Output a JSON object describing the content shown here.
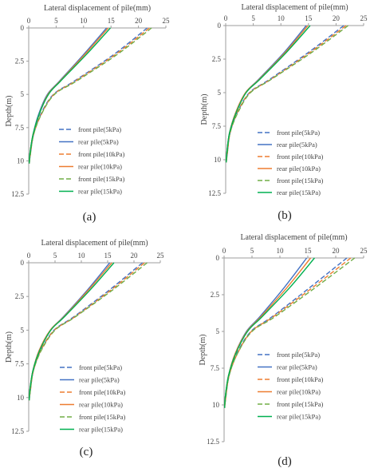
{
  "colors": {
    "front_5": "#4472C4",
    "rear_5": "#4472C4",
    "front_10": "#ED7D31",
    "rear_10": "#ED7D31",
    "front_15": "#70AD47",
    "rear_15": "#00B050",
    "axis": "#9e9e9e",
    "text": "#444444"
  },
  "chart_data": [
    {
      "type": "line",
      "panel_label": "(a)",
      "xlabel": "Lateral displacement of pile(mm)",
      "ylabel": "Depth(m)",
      "x_ticks": [
        "0",
        "5",
        "10",
        "15",
        "20",
        "25"
      ],
      "y_ticks": [
        "0",
        "2.5",
        "5",
        "7.5",
        "10",
        "12.5"
      ],
      "xlim": [
        0,
        25
      ],
      "ylim": [
        0,
        12.5
      ],
      "x_axis_position": "top",
      "y_reversed": true,
      "grid": false,
      "legend_position": "bottom-right",
      "series": [
        {
          "name": "front pile(5kPa)",
          "style": "dashed",
          "color_key": "front_5",
          "points": [
            [
              21.6,
              0
            ],
            [
              15.5,
              2
            ],
            [
              8.3,
              4
            ],
            [
              4.5,
              5
            ],
            [
              2.2,
              6.5
            ],
            [
              0.9,
              8
            ],
            [
              0.3,
              9.5
            ],
            [
              0.1,
              10.2
            ]
          ]
        },
        {
          "name": "rear pile(5kPa)",
          "style": "solid",
          "color_key": "rear_5",
          "points": [
            [
              14.2,
              0
            ],
            [
              10.0,
              2
            ],
            [
              5.6,
              4
            ],
            [
              3.4,
              5
            ],
            [
              1.8,
              6.5
            ],
            [
              0.8,
              8
            ],
            [
              0.2,
              9.5
            ],
            [
              0.1,
              10.2
            ]
          ]
        },
        {
          "name": "front pile(10kPa)",
          "style": "dashed",
          "color_key": "front_10",
          "points": [
            [
              22.0,
              0
            ],
            [
              15.8,
              2
            ],
            [
              8.5,
              4
            ],
            [
              4.6,
              5
            ],
            [
              2.3,
              6.5
            ],
            [
              0.9,
              8
            ],
            [
              0.3,
              9.5
            ],
            [
              0.1,
              10.2
            ]
          ]
        },
        {
          "name": "rear pile(10kPa)",
          "style": "solid",
          "color_key": "rear_10",
          "points": [
            [
              14.5,
              0
            ],
            [
              10.2,
              2
            ],
            [
              5.7,
              4
            ],
            [
              3.5,
              5
            ],
            [
              1.9,
              6.5
            ],
            [
              0.8,
              8
            ],
            [
              0.2,
              9.5
            ],
            [
              0.1,
              10.2
            ]
          ]
        },
        {
          "name": "front pile(15kPa)",
          "style": "dashed",
          "color_key": "front_15",
          "points": [
            [
              22.4,
              0
            ],
            [
              16.1,
              2
            ],
            [
              8.7,
              4
            ],
            [
              4.7,
              5
            ],
            [
              2.3,
              6.5
            ],
            [
              0.9,
              8
            ],
            [
              0.3,
              9.5
            ],
            [
              0.1,
              10.2
            ]
          ]
        },
        {
          "name": "rear pile(15kPa)",
          "style": "solid",
          "color_key": "rear_15",
          "points": [
            [
              14.9,
              0
            ],
            [
              10.5,
              2
            ],
            [
              5.8,
              4
            ],
            [
              3.6,
              5
            ],
            [
              1.9,
              6.5
            ],
            [
              0.8,
              8
            ],
            [
              0.2,
              9.5
            ],
            [
              0.1,
              10.2
            ]
          ]
        }
      ]
    },
    {
      "type": "line",
      "panel_label": "(b)",
      "xlabel": "Lateral displacement of pile(mm)",
      "ylabel": "Depth(m)",
      "x_ticks": [
        "0",
        "5",
        "10",
        "15",
        "20",
        "25"
      ],
      "y_ticks": [
        "0",
        "2.5",
        "5",
        "7.5",
        "10",
        "12.5"
      ],
      "xlim": [
        0,
        25
      ],
      "ylim": [
        0,
        12.5
      ],
      "x_axis_position": "top",
      "y_reversed": true,
      "grid": false,
      "legend_position": "bottom-right",
      "series": [
        {
          "name": "front pile(5kPa)",
          "style": "dashed",
          "color_key": "front_5",
          "points": [
            [
              21.4,
              0
            ],
            [
              15.0,
              2
            ],
            [
              8.0,
              4
            ],
            [
              4.3,
              5
            ],
            [
              2.1,
              6.5
            ],
            [
              0.8,
              8
            ],
            [
              0.3,
              9.5
            ],
            [
              0.1,
              10.2
            ]
          ]
        },
        {
          "name": "rear pile(5kPa)",
          "style": "solid",
          "color_key": "rear_5",
          "points": [
            [
              14.6,
              0
            ],
            [
              10.6,
              2
            ],
            [
              6.0,
              4
            ],
            [
              3.6,
              5
            ],
            [
              1.8,
              6.5
            ],
            [
              0.7,
              8
            ],
            [
              0.2,
              9.5
            ],
            [
              0.1,
              10.2
            ]
          ]
        },
        {
          "name": "front pile(10kPa)",
          "style": "dashed",
          "color_key": "front_10",
          "points": [
            [
              21.8,
              0
            ],
            [
              15.3,
              2
            ],
            [
              8.2,
              4
            ],
            [
              4.4,
              5
            ],
            [
              2.1,
              6.5
            ],
            [
              0.8,
              8
            ],
            [
              0.3,
              9.5
            ],
            [
              0.1,
              10.2
            ]
          ]
        },
        {
          "name": "rear pile(10kPa)",
          "style": "solid",
          "color_key": "rear_10",
          "points": [
            [
              14.9,
              0
            ],
            [
              10.8,
              2
            ],
            [
              6.1,
              4
            ],
            [
              3.6,
              5
            ],
            [
              1.8,
              6.5
            ],
            [
              0.7,
              8
            ],
            [
              0.2,
              9.5
            ],
            [
              0.1,
              10.2
            ]
          ]
        },
        {
          "name": "front pile(15kPa)",
          "style": "dashed",
          "color_key": "front_15",
          "points": [
            [
              22.2,
              0
            ],
            [
              15.6,
              2
            ],
            [
              8.3,
              4
            ],
            [
              4.5,
              5
            ],
            [
              2.2,
              6.5
            ],
            [
              0.8,
              8
            ],
            [
              0.3,
              9.5
            ],
            [
              0.1,
              10.2
            ]
          ]
        },
        {
          "name": "rear pile(15kPa)",
          "style": "solid",
          "color_key": "rear_15",
          "points": [
            [
              15.3,
              0
            ],
            [
              11.0,
              2
            ],
            [
              6.2,
              4
            ],
            [
              3.7,
              5
            ],
            [
              1.9,
              6.5
            ],
            [
              0.7,
              8
            ],
            [
              0.2,
              9.5
            ],
            [
              0.1,
              10.2
            ]
          ]
        }
      ]
    },
    {
      "type": "line",
      "panel_label": "(c)",
      "xlabel": "Lateral displacement of pile(mm)",
      "ylabel": "Depth(m)",
      "x_ticks": [
        "0",
        "5",
        "10",
        "15",
        "20",
        "25"
      ],
      "y_ticks": [
        "0",
        "2.5",
        "5",
        "7.5",
        "10",
        "12.5"
      ],
      "xlim": [
        0,
        25
      ],
      "ylim": [
        0,
        12.5
      ],
      "x_axis_position": "top",
      "y_reversed": true,
      "grid": false,
      "legend_position": "bottom-right",
      "series": [
        {
          "name": "front pile(5kPa)",
          "style": "dashed",
          "color_key": "front_5",
          "points": [
            [
              21.6,
              0
            ],
            [
              15.4,
              2
            ],
            [
              8.6,
              4
            ],
            [
              4.8,
              5
            ],
            [
              2.3,
              6.5
            ],
            [
              0.9,
              8
            ],
            [
              0.3,
              9.5
            ],
            [
              0.1,
              10.2
            ]
          ]
        },
        {
          "name": "rear pile(5kPa)",
          "style": "solid",
          "color_key": "rear_5",
          "points": [
            [
              15.4,
              0
            ],
            [
              11.2,
              2
            ],
            [
              6.6,
              4
            ],
            [
              4.1,
              5
            ],
            [
              2.0,
              6.5
            ],
            [
              0.8,
              8
            ],
            [
              0.2,
              9.5
            ],
            [
              0.1,
              10.2
            ]
          ]
        },
        {
          "name": "front pile(10kPa)",
          "style": "dashed",
          "color_key": "front_10",
          "points": [
            [
              22.0,
              0
            ],
            [
              15.7,
              2
            ],
            [
              8.8,
              4
            ],
            [
              4.9,
              5
            ],
            [
              2.3,
              6.5
            ],
            [
              0.9,
              8
            ],
            [
              0.3,
              9.5
            ],
            [
              0.1,
              10.2
            ]
          ]
        },
        {
          "name": "rear pile(10kPa)",
          "style": "solid",
          "color_key": "rear_10",
          "points": [
            [
              15.8,
              0
            ],
            [
              11.4,
              2
            ],
            [
              6.7,
              4
            ],
            [
              4.1,
              5
            ],
            [
              2.0,
              6.5
            ],
            [
              0.8,
              8
            ],
            [
              0.2,
              9.5
            ],
            [
              0.1,
              10.2
            ]
          ]
        },
        {
          "name": "front pile(15kPa)",
          "style": "dashed",
          "color_key": "front_15",
          "points": [
            [
              22.5,
              0
            ],
            [
              16.0,
              2
            ],
            [
              8.9,
              4
            ],
            [
              5.0,
              5
            ],
            [
              2.4,
              6.5
            ],
            [
              0.9,
              8
            ],
            [
              0.3,
              9.5
            ],
            [
              0.1,
              10.2
            ]
          ]
        },
        {
          "name": "rear pile(15kPa)",
          "style": "solid",
          "color_key": "rear_15",
          "points": [
            [
              16.2,
              0
            ],
            [
              11.7,
              2
            ],
            [
              6.8,
              4
            ],
            [
              4.2,
              5
            ],
            [
              2.1,
              6.5
            ],
            [
              0.8,
              8
            ],
            [
              0.2,
              9.5
            ],
            [
              0.1,
              10.2
            ]
          ]
        }
      ]
    },
    {
      "type": "line",
      "panel_label": "(d)",
      "xlabel": "Lateral displacement of pile(mm)",
      "ylabel": "Depth(m)",
      "x_ticks": [
        "0",
        "5",
        "10",
        "15",
        "20",
        "25"
      ],
      "y_ticks": [
        "0",
        "2.5",
        "5",
        "7.5",
        "10",
        "12.5"
      ],
      "xlim": [
        0,
        25
      ],
      "ylim": [
        0,
        12.5
      ],
      "x_axis_position": "top",
      "y_reversed": true,
      "grid": false,
      "legend_position": "bottom-right",
      "series": [
        {
          "name": "front pile(5kPa)",
          "style": "dashed",
          "color_key": "front_5",
          "points": [
            [
              22.0,
              0
            ],
            [
              15.4,
              2
            ],
            [
              8.6,
              4
            ],
            [
              4.8,
              5
            ],
            [
              2.3,
              6.5
            ],
            [
              0.9,
              8
            ],
            [
              0.3,
              9.5
            ],
            [
              0.1,
              10.2
            ]
          ]
        },
        {
          "name": "rear pile(5kPa)",
          "style": "solid",
          "color_key": "rear_5",
          "points": [
            [
              14.8,
              0
            ],
            [
              10.8,
              2
            ],
            [
              6.4,
              4
            ],
            [
              4.0,
              5
            ],
            [
              2.0,
              6.5
            ],
            [
              0.8,
              8
            ],
            [
              0.2,
              9.5
            ],
            [
              0.1,
              10.2
            ]
          ]
        },
        {
          "name": "front pile(10kPa)",
          "style": "dashed",
          "color_key": "front_10",
          "points": [
            [
              22.7,
              0
            ],
            [
              15.9,
              2
            ],
            [
              8.8,
              4
            ],
            [
              4.9,
              5
            ],
            [
              2.4,
              6.5
            ],
            [
              0.9,
              8
            ],
            [
              0.3,
              9.5
            ],
            [
              0.1,
              10.2
            ]
          ]
        },
        {
          "name": "rear pile(10kPa)",
          "style": "solid",
          "color_key": "rear_10",
          "points": [
            [
              15.5,
              0
            ],
            [
              11.3,
              2
            ],
            [
              6.6,
              4
            ],
            [
              4.1,
              5
            ],
            [
              2.0,
              6.5
            ],
            [
              0.8,
              8
            ],
            [
              0.2,
              9.5
            ],
            [
              0.1,
              10.2
            ]
          ]
        },
        {
          "name": "front pile(15kPa)",
          "style": "dashed",
          "color_key": "front_15",
          "points": [
            [
              23.4,
              0
            ],
            [
              16.4,
              2
            ],
            [
              9.1,
              4
            ],
            [
              5.0,
              5
            ],
            [
              2.4,
              6.5
            ],
            [
              0.9,
              8
            ],
            [
              0.3,
              9.5
            ],
            [
              0.1,
              10.2
            ]
          ]
        },
        {
          "name": "rear pile(15kPa)",
          "style": "solid",
          "color_key": "rear_15",
          "points": [
            [
              16.2,
              0
            ],
            [
              11.8,
              2
            ],
            [
              6.8,
              4
            ],
            [
              4.2,
              5
            ],
            [
              2.1,
              6.5
            ],
            [
              0.8,
              8
            ],
            [
              0.2,
              9.5
            ],
            [
              0.1,
              10.2
            ]
          ]
        }
      ]
    }
  ]
}
